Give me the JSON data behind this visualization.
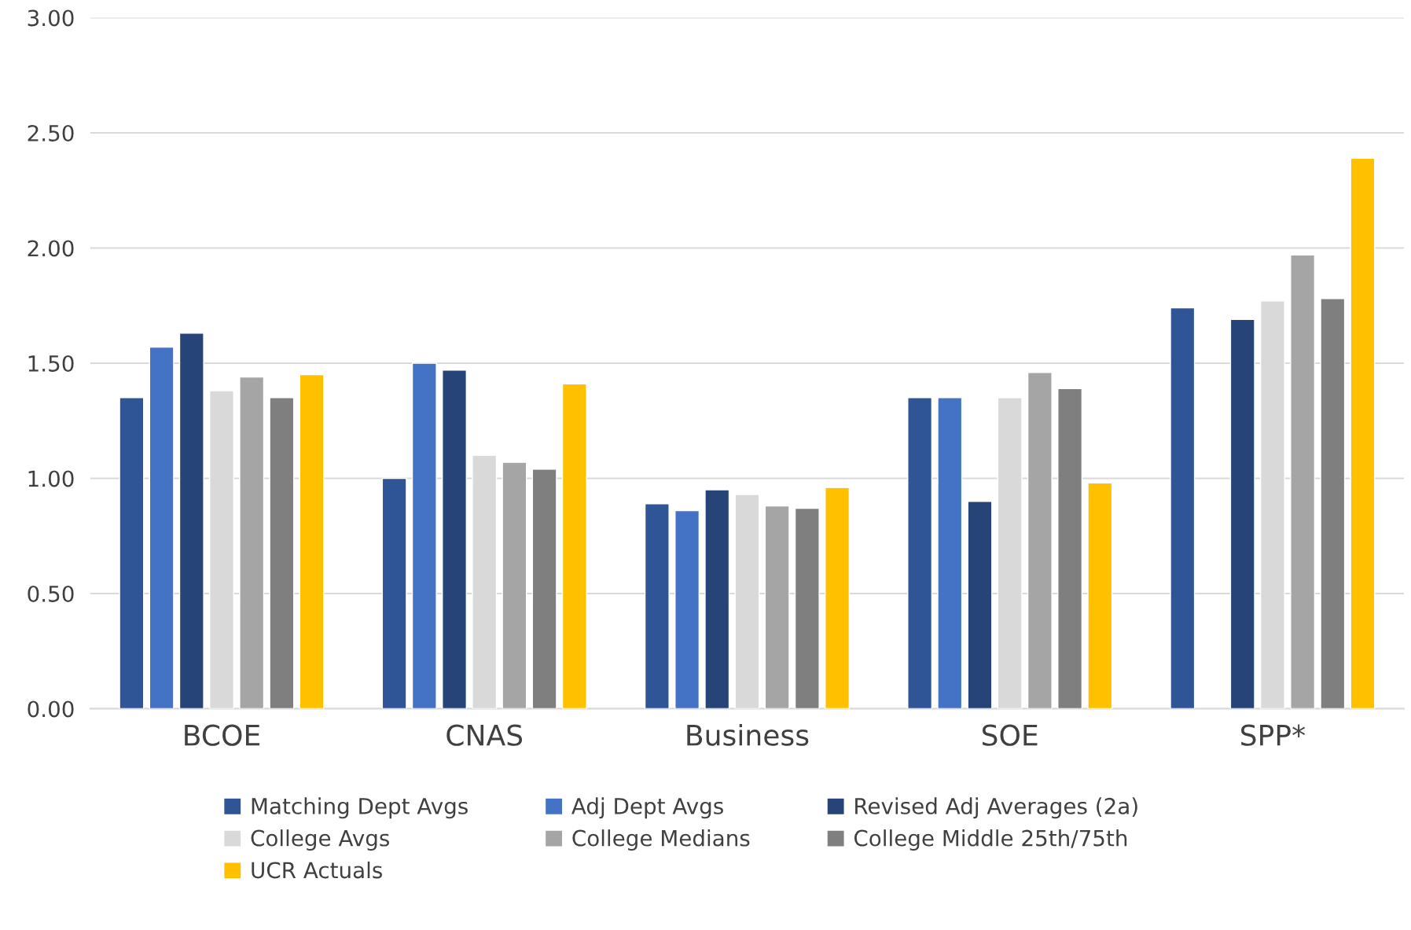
{
  "chart_data": {
    "type": "bar",
    "categories": [
      "BCOE",
      "CNAS",
      "Business",
      "SOE",
      "SPP*"
    ],
    "series": [
      {
        "name": "Matching Dept Avgs",
        "color": "#2f5597",
        "values": [
          1.35,
          1.0,
          0.89,
          1.35,
          1.74
        ]
      },
      {
        "name": "Adj Dept Avgs",
        "color": "#4472c4",
        "values": [
          1.57,
          1.5,
          0.86,
          1.35,
          null
        ]
      },
      {
        "name": "Revised Adj Averages (2a)",
        "color": "#264478",
        "values": [
          1.63,
          1.47,
          0.95,
          0.9,
          1.69
        ]
      },
      {
        "name": "College Avgs",
        "color": "#d9d9d9",
        "values": [
          1.38,
          1.1,
          0.93,
          1.35,
          1.77
        ]
      },
      {
        "name": "College Medians",
        "color": "#a5a5a5",
        "values": [
          1.44,
          1.07,
          0.88,
          1.46,
          1.97
        ]
      },
      {
        "name": "College Middle 25th/75th",
        "color": "#7f7f7f",
        "values": [
          1.35,
          1.04,
          0.87,
          1.39,
          1.78
        ]
      },
      {
        "name": "UCR Actuals",
        "color": "#ffc000",
        "values": [
          1.45,
          1.41,
          0.96,
          0.98,
          2.39
        ]
      }
    ],
    "ylim": [
      0,
      3
    ],
    "yticks": [
      {
        "value": 0,
        "label": "0.00"
      },
      {
        "value": 0.5,
        "label": "0.50"
      },
      {
        "value": 1,
        "label": "1.00"
      },
      {
        "value": 1.5,
        "label": "1.50"
      },
      {
        "value": 2,
        "label": "2.00"
      },
      {
        "value": 2.5,
        "label": "2.50"
      },
      {
        "value": 3,
        "label": "3.00"
      }
    ],
    "grid": "y",
    "legend": "bottom"
  }
}
